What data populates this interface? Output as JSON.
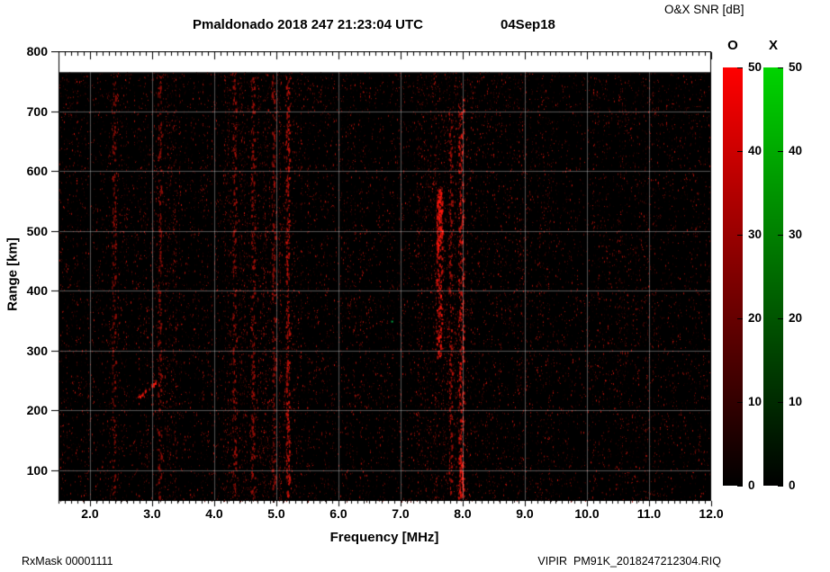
{
  "chart_data": {
    "type": "heatmap",
    "title": "Pmaldonado 2018 247 21:23:04 UTC",
    "date_label": "04Sep18",
    "colorbar_title": "O&X SNR [dB]",
    "x_label": "Frequency [MHz]",
    "y_label": "Range [km]",
    "x_range": [
      1.493,
      12.0
    ],
    "y_range": [
      49,
      800
    ],
    "x_ticks": [
      2,
      3,
      4,
      5,
      6,
      7,
      8,
      9,
      10,
      11,
      12
    ],
    "x_tick_labels": [
      "2.0",
      "3.0",
      "4.0",
      "5.0",
      "6.0",
      "7.0",
      "8.0",
      "9.0",
      "10.0",
      "11.0",
      "12.0"
    ],
    "y_ticks": [
      100,
      200,
      300,
      400,
      500,
      600,
      700,
      800
    ],
    "y_tick_labels": [
      "100",
      "200",
      "300",
      "400",
      "500",
      "600",
      "700",
      "800"
    ],
    "grid": true,
    "grid_color": "#c8c8c8",
    "background": "#000000",
    "data_max_range_km": 765,
    "colorbars": [
      {
        "label": "O",
        "min": 0,
        "max": 50,
        "ticks": [
          0,
          10,
          20,
          30,
          40,
          50
        ],
        "color": "#ff0000"
      },
      {
        "label": "X",
        "min": 0,
        "max": 50,
        "ticks": [
          0,
          10,
          20,
          30,
          40,
          50
        ],
        "color": "#00d400"
      }
    ],
    "noise": {
      "seed": 2018247,
      "per_column": 26,
      "speckle_color": "#ff2010",
      "bands": [
        {
          "f1": 2.28,
          "f2": 2.6,
          "mult": 1.5
        },
        {
          "f1": 3.0,
          "f2": 3.4,
          "mult": 1.7
        },
        {
          "f1": 4.15,
          "f2": 5.35,
          "mult": 2.1
        },
        {
          "f1": 5.9,
          "f2": 6.2,
          "mult": 1.3
        },
        {
          "f1": 7.25,
          "f2": 8.15,
          "mult": 1.9
        },
        {
          "f1": 8.75,
          "f2": 9.05,
          "mult": 1.4
        },
        {
          "f1": 9.25,
          "f2": 9.45,
          "mult": 1.3
        },
        {
          "f1": 10.9,
          "f2": 11.1,
          "mult": 1.3
        }
      ]
    },
    "features": [
      {
        "type": "column",
        "f": 2.38,
        "r1": 55,
        "r2": 760,
        "width": 2,
        "amp": 0.4,
        "density": 0.28
      },
      {
        "type": "column",
        "f": 3.12,
        "r1": 55,
        "r2": 760,
        "width": 2,
        "amp": 0.45,
        "density": 0.33
      },
      {
        "type": "column",
        "f": 4.32,
        "r1": 55,
        "r2": 760,
        "width": 2,
        "amp": 0.48,
        "density": 0.3
      },
      {
        "type": "column",
        "f": 4.62,
        "r1": 55,
        "r2": 760,
        "width": 2,
        "amp": 0.48,
        "density": 0.3
      },
      {
        "type": "column",
        "f": 4.95,
        "r1": 55,
        "r2": 760,
        "width": 2,
        "amp": 0.48,
        "density": 0.3
      },
      {
        "type": "column",
        "f": 5.18,
        "r1": 55,
        "r2": 760,
        "width": 2,
        "amp": 0.75,
        "density": 0.5
      },
      {
        "type": "column",
        "f": 7.62,
        "r1": 290,
        "r2": 575,
        "width": 3,
        "amp": 1.0,
        "density": 0.75
      },
      {
        "type": "column",
        "f": 7.62,
        "r1": 470,
        "r2": 570,
        "width": 3,
        "amp": 1.3,
        "density": 1.0
      },
      {
        "type": "column",
        "f": 7.8,
        "r1": 60,
        "r2": 700,
        "width": 2,
        "amp": 0.6,
        "density": 0.35
      },
      {
        "type": "column",
        "f": 7.97,
        "r1": 55,
        "r2": 720,
        "width": 3,
        "amp": 0.9,
        "density": 0.6
      },
      {
        "type": "column",
        "f": 7.97,
        "r1": 55,
        "r2": 130,
        "width": 3,
        "amp": 1.2,
        "density": 0.9
      },
      {
        "type": "diag",
        "f1": 2.78,
        "f2": 3.08,
        "r1": 222,
        "r2": 252,
        "width": 2,
        "amp": 1.1,
        "density": 0.9
      },
      {
        "type": "dot",
        "f": 6.85,
        "r": 350,
        "color": "#00aa44"
      }
    ]
  },
  "footer_left": "RxMask 00001111",
  "footer_right": "VIPIR  PM91K_2018247212304.RIQ"
}
